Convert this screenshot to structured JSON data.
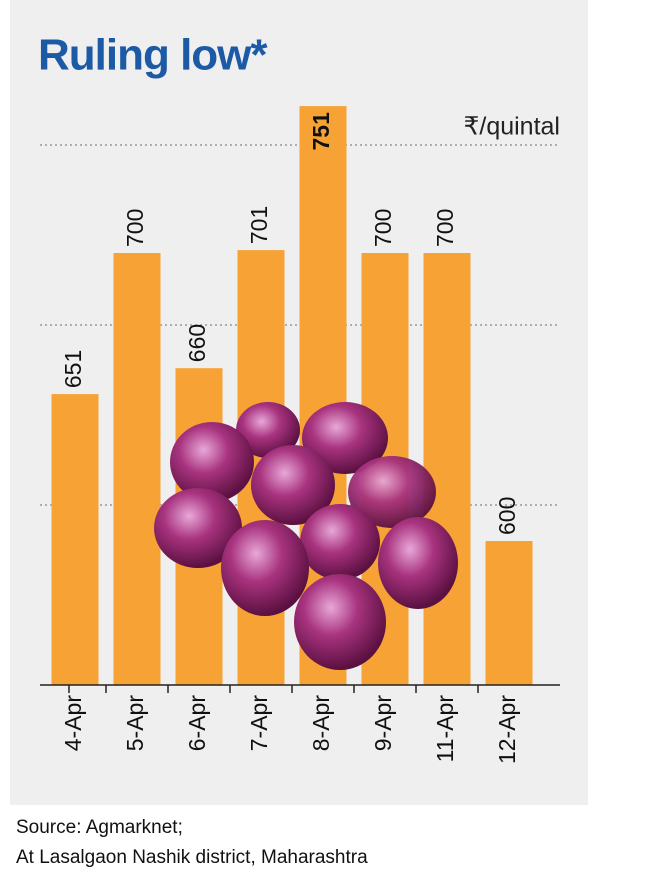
{
  "chart_data": {
    "type": "bar",
    "title": "Ruling low*",
    "y_label": "₹/quintal",
    "categories": [
      "4-Apr",
      "5-Apr",
      "6-Apr",
      "7-Apr",
      "8-Apr",
      "9-Apr",
      "11-Apr",
      "12-Apr"
    ],
    "values": [
      651,
      700,
      660,
      701,
      751,
      700,
      700,
      600
    ],
    "color": "#f7a234",
    "ylim": [
      550,
      800
    ],
    "source": [
      "Source: Agmarknet;",
      "At Lasalgaon Nashik district, Maharashtra"
    ]
  }
}
